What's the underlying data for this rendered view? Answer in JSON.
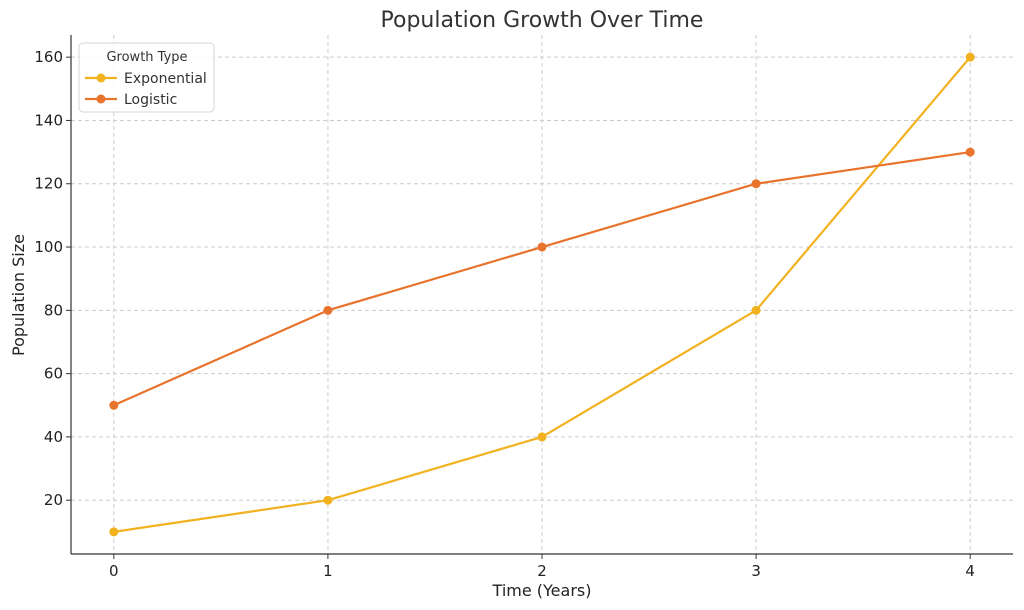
{
  "chart_data": {
    "type": "line",
    "title": "Population Growth Over Time",
    "xlabel": "Time (Years)",
    "ylabel": "Population Size",
    "x": [
      0,
      1,
      2,
      3,
      4
    ],
    "xlim": [
      -0.2,
      4.2
    ],
    "ylim": [
      3,
      167
    ],
    "xticks": [
      0,
      1,
      2,
      3,
      4
    ],
    "yticks": [
      20,
      40,
      60,
      80,
      100,
      120,
      140,
      160
    ],
    "grid": true,
    "legend": {
      "title": "Growth Type",
      "placement": "top-left"
    },
    "series": [
      {
        "name": "Exponential",
        "values": [
          10,
          20,
          40,
          80,
          160
        ],
        "color": "#f2b11f",
        "marker": "circle"
      },
      {
        "name": "Logistic",
        "values": [
          50,
          80,
          100,
          120,
          130
        ],
        "color": "#e8732c",
        "marker": "circle"
      }
    ]
  }
}
